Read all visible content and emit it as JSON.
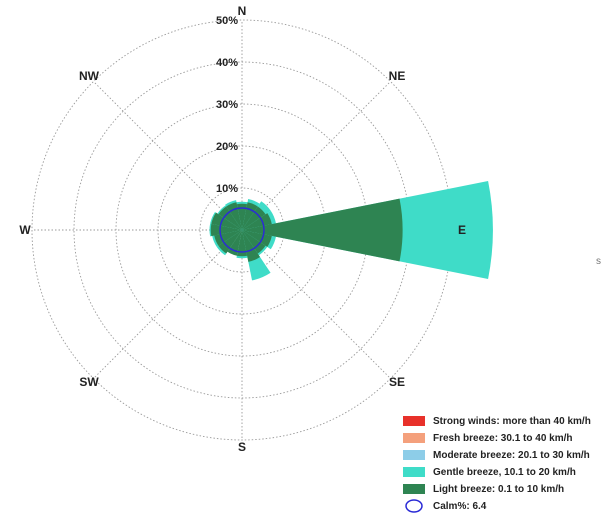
{
  "chart_data": {
    "type": "wind-rose",
    "title": "",
    "radial_axis": {
      "max_percent": 50,
      "ticks": [
        10,
        20,
        30,
        40,
        50
      ],
      "tick_labels": [
        "10%",
        "20%",
        "30%",
        "40%",
        "50%"
      ]
    },
    "directions": [
      "N",
      "NE",
      "E",
      "SE",
      "S",
      "SW",
      "W",
      "NW"
    ],
    "sector_directions": [
      "N",
      "NNE",
      "NE",
      "ENE",
      "E",
      "ESE",
      "SE",
      "SSE",
      "S",
      "SSW",
      "SW",
      "WSW",
      "W",
      "WNW",
      "NW",
      "NNW"
    ],
    "sector_width_deg": 22.5,
    "series": [
      {
        "name": "Strong winds: more than 40 km/h",
        "color": "#e8312a",
        "values": [
          0,
          0,
          0,
          0,
          0,
          0,
          0,
          0,
          0,
          0,
          0,
          0,
          0,
          0,
          0,
          0
        ]
      },
      {
        "name": "Fresh breeze: 30.1 to 40 km/h",
        "color": "#f4a07c",
        "values": [
          0,
          0,
          0,
          0,
          0,
          0,
          0,
          0,
          0,
          0,
          0,
          0,
          0,
          0,
          0,
          0
        ]
      },
      {
        "name": "Moderate breeze: 20.1 to 30 km/h",
        "color": "#8dcde8",
        "values": [
          0,
          0,
          0,
          0,
          0,
          0,
          0,
          0,
          0,
          0,
          0,
          0,
          0,
          0,
          0,
          0
        ]
      },
      {
        "name": "Gentle breeze, 10.1 to 20 km/h",
        "color": "#3fdcc8",
        "values": [
          0.5,
          0.8,
          1.5,
          1.0,
          21.5,
          1.0,
          0.5,
          4.5,
          0.5,
          0.0,
          0.5,
          0.5,
          0.3,
          0.3,
          0.3,
          0.5
        ]
      },
      {
        "name": "Light breeze: 0.1 to 10 km/h",
        "color": "#2e8452",
        "values": [
          1.0,
          1.5,
          1.5,
          2.0,
          33.0,
          2.0,
          1.5,
          2.5,
          1.0,
          1.0,
          1.5,
          1.5,
          2.2,
          2.2,
          1.5,
          1.5
        ]
      }
    ],
    "calm": {
      "label": "Calm%:",
      "value": "6.4",
      "color": "#2b2bd6"
    },
    "legend_position": "bottom-right"
  },
  "stray_mark": "s"
}
